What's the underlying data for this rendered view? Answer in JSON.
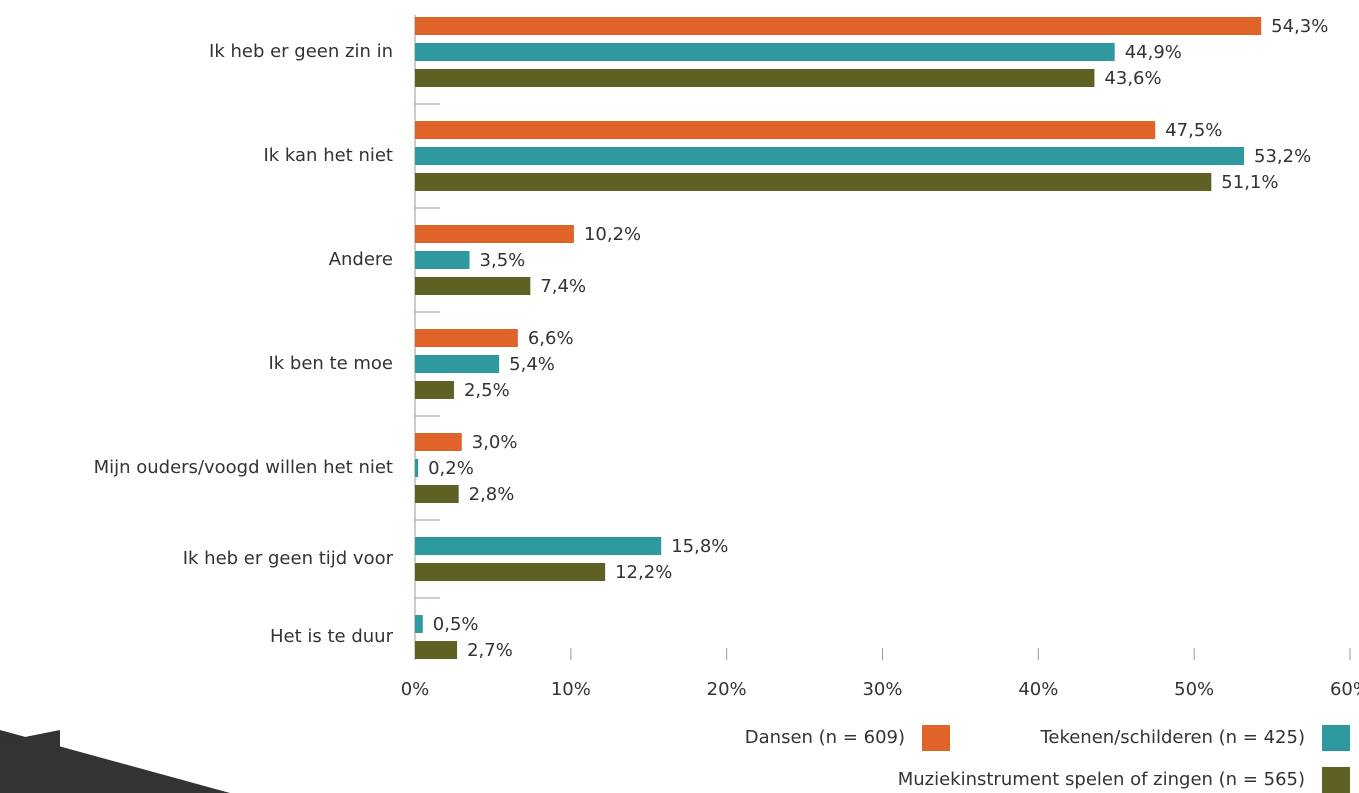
{
  "chart_data": {
    "type": "hbar",
    "categories": [
      "Ik heb er geen zin in",
      "Ik kan het niet",
      "Andere",
      "Ik ben te moe",
      "Mijn ouders/voogd willen het niet",
      "Ik heb er geen tijd voor",
      "Het is te duur"
    ],
    "series": [
      {
        "name": "Dansen (n = 609)",
        "color": "#e0642a",
        "values": [
          54.3,
          47.5,
          10.2,
          6.6,
          3.0,
          null,
          null
        ],
        "value_labels": [
          "54,3%",
          "47,5%",
          "10,2%",
          "6,6%",
          "3,0%",
          null,
          null
        ]
      },
      {
        "name": "Tekenen/schilderen (n = 425)",
        "color": "#2e9aa0",
        "values": [
          44.9,
          53.2,
          3.5,
          5.4,
          0.2,
          15.8,
          0.5
        ],
        "value_labels": [
          "44,9%",
          "53,2%",
          "3,5%",
          "5,4%",
          "0,2%",
          "15,8%",
          "0,5%"
        ]
      },
      {
        "name": "Muziekinstrument spelen of zingen (n = 565)",
        "color": "#5e6123",
        "values": [
          43.6,
          51.1,
          7.4,
          2.5,
          2.8,
          12.2,
          2.7
        ],
        "value_labels": [
          "43,6%",
          "51,1%",
          "7,4%",
          "2,5%",
          "2,8%",
          "12,2%",
          "2,7%"
        ]
      }
    ],
    "xlim": [
      0,
      60
    ],
    "xticks": [
      {
        "value": 0,
        "label": "0%"
      },
      {
        "value": 10,
        "label": "10%"
      },
      {
        "value": 20,
        "label": "20%"
      },
      {
        "value": 30,
        "label": "30%"
      },
      {
        "value": 40,
        "label": "40%"
      },
      {
        "value": 50,
        "label": "50%"
      },
      {
        "value": 60,
        "label": "60%"
      }
    ]
  }
}
